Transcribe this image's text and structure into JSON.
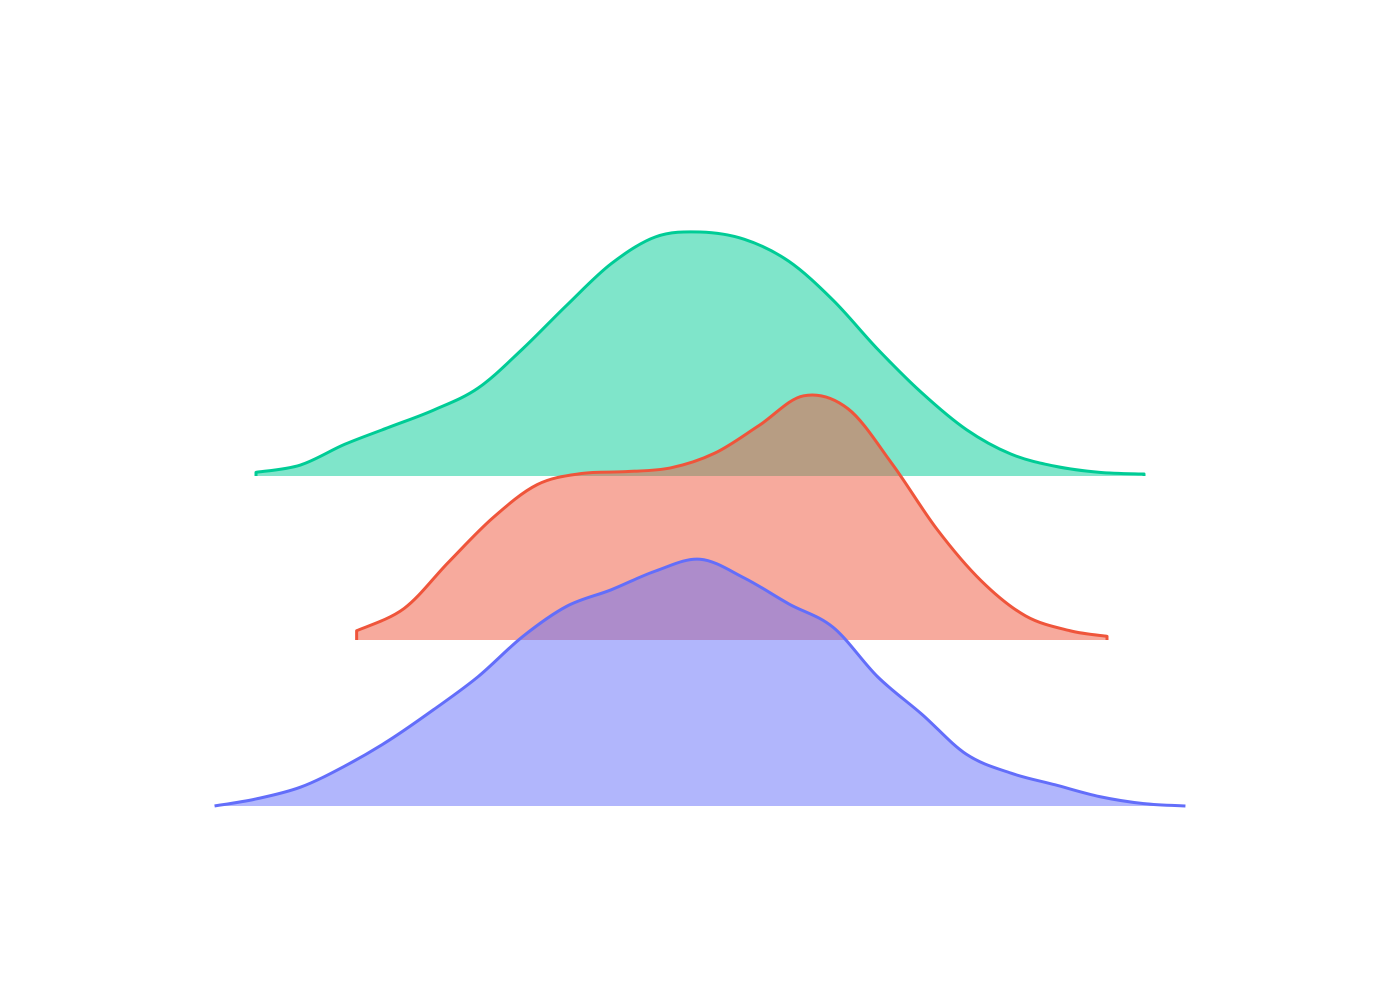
{
  "chart_data": {
    "type": "area",
    "subtype": "ridgeline",
    "grid": false,
    "legend": "none",
    "xlim": [
      -3.5,
      3.5
    ],
    "series": [
      {
        "color": "#00cc96",
        "x": [
          -3.0,
          -2.7,
          -2.4,
          -2.1,
          -1.8,
          -1.5,
          -1.2,
          -0.9,
          -0.6,
          -0.3,
          0.0,
          0.3,
          0.6,
          0.9,
          1.2,
          1.5,
          1.8,
          2.1,
          2.4,
          2.7,
          3.0
        ],
        "density": [
          0.015,
          0.045,
          0.13,
          0.2,
          0.27,
          0.36,
          0.52,
          0.7,
          0.87,
          0.98,
          1.0,
          0.97,
          0.88,
          0.72,
          0.52,
          0.34,
          0.19,
          0.09,
          0.04,
          0.015,
          0.008
        ]
      },
      {
        "color": "#ef553b",
        "x": [
          -2.32,
          -2.0,
          -1.7,
          -1.4,
          -1.1,
          -0.8,
          -0.5,
          -0.2,
          0.1,
          0.4,
          0.7,
          1.0,
          1.3,
          1.6,
          1.9,
          2.2,
          2.5,
          2.75
        ],
        "density": [
          0.05,
          0.17,
          0.42,
          0.66,
          0.84,
          0.9,
          0.91,
          0.93,
          1.01,
          1.16,
          1.32,
          1.25,
          0.95,
          0.6,
          0.32,
          0.13,
          0.05,
          0.02
        ]
      },
      {
        "color": "#636efa",
        "x": [
          -3.28,
          -3.0,
          -2.7,
          -2.4,
          -2.1,
          -1.8,
          -1.5,
          -1.2,
          -0.9,
          -0.6,
          -0.3,
          0.0,
          0.3,
          0.6,
          0.9,
          1.2,
          1.5,
          1.8,
          2.1,
          2.4,
          2.7,
          3.0,
          3.28
        ],
        "density": [
          0.0,
          0.03,
          0.08,
          0.17,
          0.28,
          0.41,
          0.55,
          0.72,
          0.85,
          0.92,
          1.0,
          1.05,
          0.97,
          0.86,
          0.76,
          0.55,
          0.39,
          0.22,
          0.14,
          0.09,
          0.04,
          0.01,
          0.0
        ]
      }
    ]
  }
}
